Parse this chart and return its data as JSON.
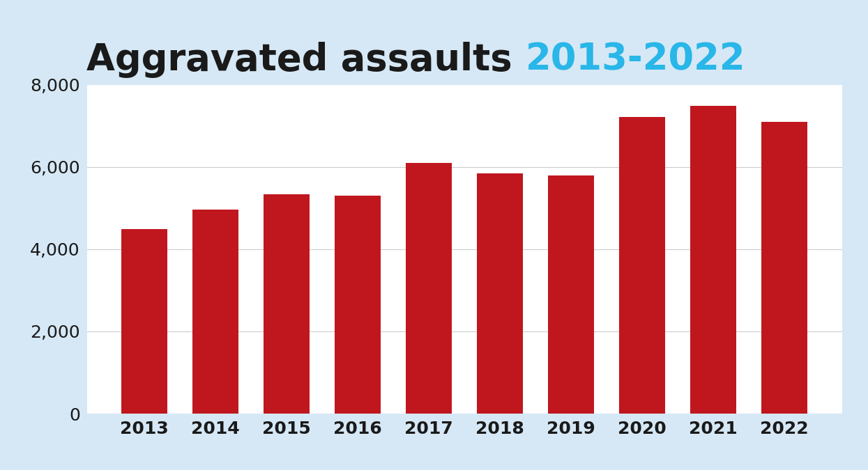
{
  "years": [
    "2013",
    "2014",
    "2015",
    "2016",
    "2017",
    "2018",
    "2019",
    "2020",
    "2021",
    "2022"
  ],
  "values": [
    4490,
    4960,
    5340,
    5300,
    6100,
    5840,
    5790,
    7210,
    7490,
    7100
  ],
  "bar_color": "#c0171f",
  "background_color": "#d6e8f5",
  "plot_background_color": "#ffffff",
  "title_part1": "Aggravated assaults ",
  "title_part2": "2013-2022",
  "title_color1": "#1a1a1a",
  "title_color2": "#29b6e8",
  "title_fontsize": 38,
  "title_fontweight": "bold",
  "ylim": [
    0,
    8000
  ],
  "yticks": [
    0,
    2000,
    4000,
    6000,
    8000
  ],
  "grid_color": "#cccccc",
  "tick_fontsize": 18,
  "bar_width": 0.65
}
